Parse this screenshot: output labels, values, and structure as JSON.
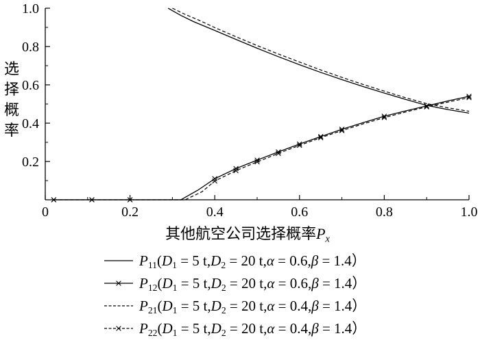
{
  "figure": {
    "background": "#ffffff",
    "ink": "#000000"
  },
  "chart_data": {
    "type": "line",
    "title": "",
    "ylabel": "选择概率",
    "xlabel_segments": [
      {
        "t": "其他航空公司选择概率",
        "s": "plain"
      },
      {
        "t": "P",
        "s": "var"
      },
      {
        "t": "x",
        "s": "subi"
      }
    ],
    "xlim": [
      0,
      1
    ],
    "ylim": [
      0,
      1
    ],
    "grid": false,
    "legend_position": "below",
    "x_ticks": [
      {
        "v": 0,
        "label": "0"
      },
      {
        "v": 0.2,
        "label": "0.2"
      },
      {
        "v": 0.4,
        "label": "0.4"
      },
      {
        "v": 0.6,
        "label": "0.6"
      },
      {
        "v": 0.8,
        "label": "0.8"
      },
      {
        "v": 1.0,
        "label": "1.0"
      }
    ],
    "y_ticks": [
      {
        "v": 0.2,
        "label": "0.2"
      },
      {
        "v": 0.4,
        "label": "0.4"
      },
      {
        "v": 0.6,
        "label": "0.6"
      },
      {
        "v": 0.8,
        "label": "0.8"
      },
      {
        "v": 1.0,
        "label": "1.0"
      }
    ],
    "x_minor": [
      0.1,
      0.3,
      0.5,
      0.7,
      0.9
    ],
    "y_minor": [
      0.1,
      0.3,
      0.5,
      0.7,
      0.9
    ],
    "series": [
      {
        "name": "P11",
        "style": "solid",
        "marker": false,
        "x": [
          0.29,
          0.32,
          0.35,
          0.4,
          0.45,
          0.5,
          0.55,
          0.6,
          0.65,
          0.7,
          0.75,
          0.8,
          0.85,
          0.9,
          0.95,
          1.0
        ],
        "y": [
          1.0,
          0.962,
          0.93,
          0.884,
          0.837,
          0.791,
          0.747,
          0.705,
          0.665,
          0.627,
          0.591,
          0.557,
          0.524,
          0.493,
          0.471,
          0.452
        ]
      },
      {
        "name": "P12",
        "style": "solid",
        "marker": true,
        "x": [
          0.02,
          0.11,
          0.2,
          0.32,
          0.36,
          0.4,
          0.45,
          0.5,
          0.55,
          0.6,
          0.65,
          0.7,
          0.75,
          0.8,
          0.85,
          0.9,
          0.95,
          1.0
        ],
        "y": [
          0,
          0,
          0,
          0,
          0.05,
          0.11,
          0.163,
          0.207,
          0.25,
          0.291,
          0.33,
          0.368,
          0.403,
          0.436,
          0.464,
          0.49,
          0.516,
          0.54
        ],
        "marker_x": [
          0.02,
          0.11,
          0.2,
          0.4,
          0.45,
          0.5,
          0.55,
          0.6,
          0.65,
          0.7,
          0.8,
          0.9,
          1.0
        ]
      },
      {
        "name": "P21",
        "style": "dashed",
        "marker": false,
        "x": [
          0.3,
          0.33,
          0.36,
          0.4,
          0.45,
          0.5,
          0.55,
          0.6,
          0.65,
          0.7,
          0.75,
          0.8,
          0.85,
          0.9,
          0.95,
          1.0
        ],
        "y": [
          1.0,
          0.968,
          0.94,
          0.899,
          0.851,
          0.805,
          0.761,
          0.719,
          0.678,
          0.639,
          0.602,
          0.567,
          0.533,
          0.502,
          0.48,
          0.462
        ]
      },
      {
        "name": "P22",
        "style": "dashed",
        "marker": true,
        "x": [
          0.02,
          0.11,
          0.2,
          0.33,
          0.37,
          0.4,
          0.45,
          0.5,
          0.55,
          0.6,
          0.65,
          0.7,
          0.75,
          0.8,
          0.85,
          0.9,
          0.95,
          1.0
        ],
        "y": [
          0,
          0,
          0,
          0,
          0.042,
          0.098,
          0.152,
          0.198,
          0.242,
          0.284,
          0.324,
          0.361,
          0.396,
          0.429,
          0.458,
          0.485,
          0.51,
          0.533
        ],
        "marker_x": [
          0.02,
          0.11,
          0.2,
          0.4,
          0.45,
          0.5,
          0.55,
          0.6,
          0.65,
          0.7,
          0.8,
          0.9,
          1.0
        ]
      }
    ]
  },
  "legend": {
    "items": [
      {
        "name": "P11",
        "segments": [
          {
            "t": "P",
            "s": "var"
          },
          {
            "t": "11",
            "s": "sub"
          },
          {
            "t": "(",
            "s": "plain"
          },
          {
            "t": "D",
            "s": "var"
          },
          {
            "t": "1",
            "s": "sub"
          },
          {
            "t": " = 5 t,",
            "s": "plain"
          },
          {
            "t": "D",
            "s": "var"
          },
          {
            "t": "2",
            "s": "sub"
          },
          {
            "t": " = 20 t,",
            "s": "plain"
          },
          {
            "t": "α",
            "s": "var"
          },
          {
            "t": " = 0.6,",
            "s": "plain"
          },
          {
            "t": "β",
            "s": "var"
          },
          {
            "t": " = 1.4）",
            "s": "plain"
          }
        ]
      },
      {
        "name": "P12",
        "segments": [
          {
            "t": "P",
            "s": "var"
          },
          {
            "t": "12",
            "s": "sub"
          },
          {
            "t": "(",
            "s": "plain"
          },
          {
            "t": "D",
            "s": "var"
          },
          {
            "t": "1",
            "s": "sub"
          },
          {
            "t": " = 5 t,",
            "s": "plain"
          },
          {
            "t": "D",
            "s": "var"
          },
          {
            "t": "2",
            "s": "sub"
          },
          {
            "t": " = 20 t,",
            "s": "plain"
          },
          {
            "t": "α",
            "s": "var"
          },
          {
            "t": " = 0.6,",
            "s": "plain"
          },
          {
            "t": "β",
            "s": "var"
          },
          {
            "t": " = 1.4）",
            "s": "plain"
          }
        ]
      },
      {
        "name": "P21",
        "segments": [
          {
            "t": "P",
            "s": "var"
          },
          {
            "t": "21",
            "s": "sub"
          },
          {
            "t": "(",
            "s": "plain"
          },
          {
            "t": "D",
            "s": "var"
          },
          {
            "t": "1",
            "s": "sub"
          },
          {
            "t": " = 5 t,",
            "s": "plain"
          },
          {
            "t": "D",
            "s": "var"
          },
          {
            "t": "2",
            "s": "sub"
          },
          {
            "t": " = 20 t,",
            "s": "plain"
          },
          {
            "t": "α",
            "s": "var"
          },
          {
            "t": " = 0.4,",
            "s": "plain"
          },
          {
            "t": "β",
            "s": "var"
          },
          {
            "t": " = 1.4）",
            "s": "plain"
          }
        ]
      },
      {
        "name": "P22",
        "segments": [
          {
            "t": "P",
            "s": "var"
          },
          {
            "t": "22",
            "s": "sub"
          },
          {
            "t": "(",
            "s": "plain"
          },
          {
            "t": "D",
            "s": "var"
          },
          {
            "t": "1",
            "s": "sub"
          },
          {
            "t": " = 5 t,",
            "s": "plain"
          },
          {
            "t": "D",
            "s": "var"
          },
          {
            "t": "2",
            "s": "sub"
          },
          {
            "t": " = 20 t,",
            "s": "plain"
          },
          {
            "t": "α",
            "s": "var"
          },
          {
            "t": " = 0.4,",
            "s": "plain"
          },
          {
            "t": "β",
            "s": "var"
          },
          {
            "t": " = 1.4）",
            "s": "plain"
          }
        ]
      }
    ]
  }
}
